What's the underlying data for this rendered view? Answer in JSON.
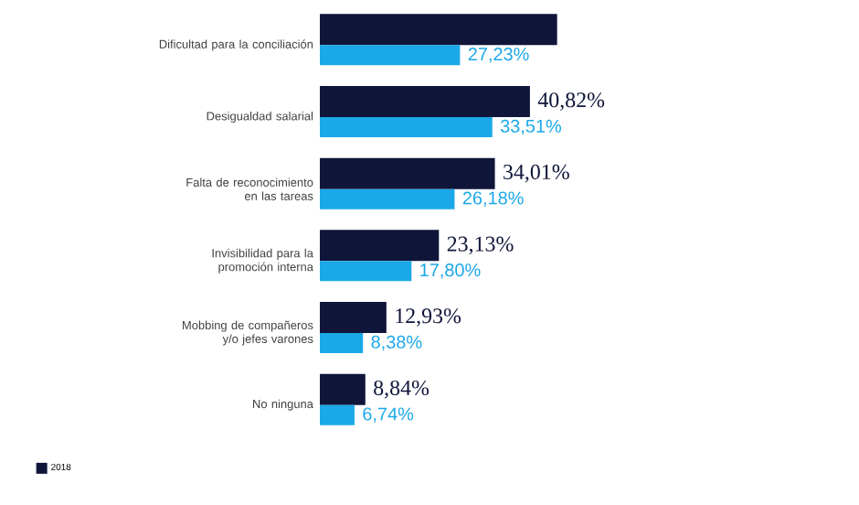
{
  "chart_data": {
    "type": "bar",
    "orientation": "horizontal",
    "legend": "bottom left",
    "categories": [
      "Dificultad para la conciliación",
      "Desigualdad salarial",
      "Falta de reconocimiento en las tareas",
      "Invisibilidad para la promoción interna",
      "Mobbing de compañeros y/o jefes varones",
      "No ninguna"
    ],
    "series": [
      {
        "name": "2018",
        "color": "#10163a",
        "values": [
          46.1,
          40.82,
          34.01,
          23.13,
          12.93,
          8.84
        ],
        "value_labels": [
          null,
          "40,82%",
          "34,01%",
          "23,13%",
          "12,93%",
          "8,84%"
        ]
      },
      {
        "color": "#1ba8e8",
        "values": [
          27.23,
          33.51,
          26.18,
          17.8,
          8.38,
          6.74
        ],
        "value_labels": [
          "27,23%",
          "33,51%",
          "26,18%",
          "17,80%",
          "8,38%",
          "6,74%"
        ]
      }
    ]
  }
}
